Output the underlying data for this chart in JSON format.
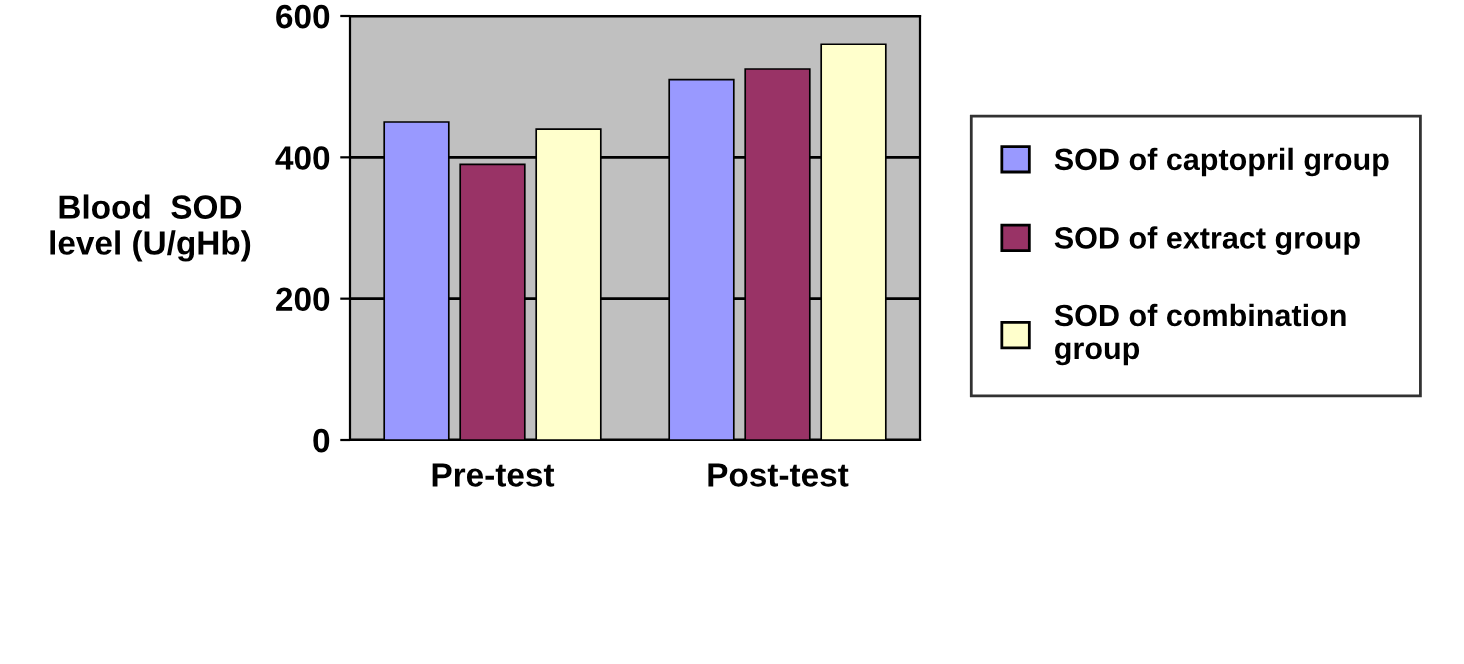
{
  "chart_data": {
    "type": "bar",
    "ylabel": "Blood  SOD\nlevel (U/gHb)",
    "categories": [
      "Pre-test",
      "Post-test"
    ],
    "series": [
      {
        "name": "SOD of captopril group",
        "color": "#9999ff",
        "values": [
          450,
          510
        ]
      },
      {
        "name": "SOD of extract group",
        "color": "#993366",
        "values": [
          390,
          525
        ]
      },
      {
        "name": "SOD of combination group",
        "color": "#ffffcc",
        "values": [
          440,
          560
        ]
      }
    ],
    "ylim": [
      0,
      600
    ],
    "yticks": [
      0,
      200,
      400,
      600
    ],
    "grid": "y",
    "legend": "right"
  }
}
